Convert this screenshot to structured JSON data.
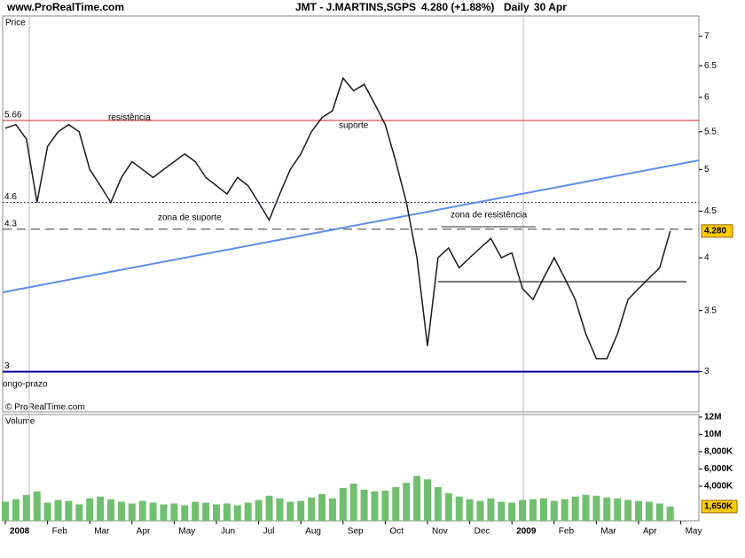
{
  "header": {
    "site": "www.ProRealTime.com",
    "instrument": "JMT - J.MARTINS,SGPS",
    "quote": "4.280 (+1.88%)",
    "period": "Daily",
    "date": "30 Apr"
  },
  "footer": "© ProRealTime.com",
  "chart_data": {
    "type": "line",
    "categories": [
      "2008",
      null,
      null,
      null,
      "Feb",
      null,
      null,
      null,
      "Mar",
      null,
      null,
      null,
      "Apr",
      null,
      null,
      null,
      "May",
      null,
      null,
      null,
      "Jun",
      null,
      null,
      null,
      "Jul",
      null,
      null,
      null,
      "Aug",
      null,
      null,
      null,
      "Sep",
      null,
      null,
      null,
      "Oct",
      null,
      null,
      null,
      "Nov",
      null,
      null,
      null,
      "Dec",
      null,
      null,
      null,
      "2009",
      null,
      null,
      null,
      "Feb",
      null,
      null,
      null,
      "Mar",
      null,
      null,
      null,
      "Apr",
      null,
      null,
      null,
      "May"
    ],
    "series": [
      {
        "name": "Price",
        "color": "#1a1a1a",
        "values": [
          5.55,
          5.6,
          5.4,
          4.6,
          5.3,
          5.5,
          5.6,
          5.5,
          5.0,
          4.8,
          4.6,
          4.9,
          5.1,
          5.0,
          4.9,
          5.0,
          5.1,
          5.2,
          5.1,
          4.9,
          4.8,
          4.7,
          4.9,
          4.8,
          4.6,
          4.4,
          4.7,
          5.0,
          5.2,
          5.5,
          5.7,
          5.8,
          6.3,
          6.1,
          6.2,
          5.9,
          5.6,
          5.1,
          4.6,
          4.0,
          3.2,
          4.0,
          4.1,
          3.9,
          4.0,
          4.1,
          4.2,
          4.0,
          4.05,
          3.7,
          3.6,
          3.8,
          4.0,
          3.8,
          3.6,
          3.3,
          3.1,
          3.1,
          3.3,
          3.6,
          3.7,
          3.8,
          3.9,
          4.28,
          null
        ]
      },
      {
        "name": "Volume",
        "color": "#6fbf6f",
        "axis": "y2",
        "type": "bar",
        "values": [
          2200000,
          2500000,
          3000000,
          3400000,
          2100000,
          2400000,
          2300000,
          1900000,
          2600000,
          2800000,
          2500000,
          2200000,
          2000000,
          2300000,
          2100000,
          1900000,
          2000000,
          1800000,
          2200000,
          2100000,
          1900000,
          2000000,
          1800000,
          2100000,
          2400000,
          2900000,
          2600000,
          2200000,
          2300000,
          2700000,
          3100000,
          2600000,
          3800000,
          4300000,
          3600000,
          3400000,
          3500000,
          3900000,
          4400000,
          5200000,
          4800000,
          3900000,
          3200000,
          2800000,
          2500000,
          2300000,
          2600000,
          2200000,
          2100000,
          2400000,
          2500000,
          2600000,
          2300000,
          2500000,
          2800000,
          3000000,
          2900000,
          2700000,
          2600000,
          2400000,
          2300000,
          2200000,
          2000000,
          1650000,
          null
        ],
        "last_label": {
          "value": 1650000,
          "label": "1,650K"
        }
      }
    ],
    "ylim": [
      2.71,
      7.37
    ],
    "log": true,
    "yticks": [
      3,
      3.5,
      4,
      4.5,
      5,
      5.5,
      6,
      6.5,
      7
    ],
    "last_price": {
      "value": 4.28,
      "label": "4.280"
    },
    "y2lim": [
      0,
      12300000
    ],
    "y2ticks": [
      {
        "value": 4000000,
        "label": "4,000K"
      },
      {
        "value": 6000000,
        "label": "6,000K"
      },
      {
        "value": 8000000,
        "label": "8,000K"
      },
      {
        "value": 10000000,
        "label": "10M"
      },
      {
        "value": 12000000,
        "label": "12M"
      }
    ],
    "levels": [
      {
        "value": 5.66,
        "color": "#cc2222",
        "dash": "solid"
      },
      {
        "value": 4.6,
        "color": "#333366",
        "dash": "dotted"
      },
      {
        "value": 4.3,
        "color": "#333333",
        "dash": "dashed"
      },
      {
        "value": 3,
        "color": "#000099",
        "dash": "solid"
      }
    ],
    "annotations": [
      "resistência",
      "suporte",
      "zona de suporte",
      "zona de resistência",
      "ongo-prazo"
    ]
  }
}
